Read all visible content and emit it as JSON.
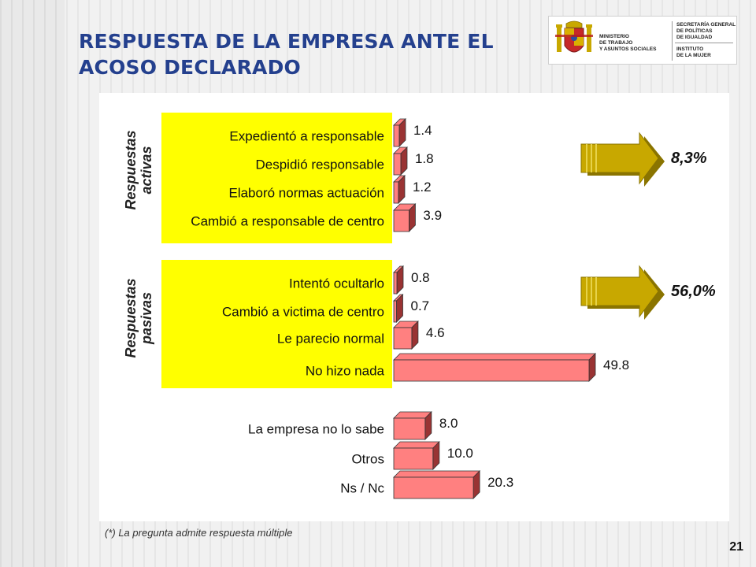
{
  "slide": {
    "title": "RESPUESTA DE LA EMPRESA ANTE EL\nACOSO DECLARADO",
    "footnote": "(*) La pregunta admite respuesta múltiple",
    "page_number": "21"
  },
  "logo": {
    "ministry": "Ministerio\nde Trabajo\ny Asuntos Sociales",
    "secretaria": "Secretaría General\nde Políticas\nde Igualdad",
    "instituto": "Instituto\nde la Mujer"
  },
  "colors": {
    "title": "#24408e",
    "highlight": "#ffff00",
    "bar_front": "#ff8080",
    "bar_side": "#993333",
    "arrow": "#c8a800"
  },
  "chart_data": {
    "type": "bar",
    "orientation": "horizontal",
    "groups": [
      {
        "label": "Respuestas activas",
        "summary": "8,3%",
        "categories": [
          "Expedientó a responsable",
          "Despidió responsable",
          "Elaboró normas actuación",
          "Cambió a responsable de centro"
        ],
        "values": [
          1.4,
          1.8,
          1.2,
          3.9
        ],
        "value_labels": [
          "1.4",
          "1.8",
          "1.2",
          "3.9"
        ]
      },
      {
        "label": "Respuestas pasivas",
        "summary": "56,0%",
        "categories": [
          "Intentó ocultarlo",
          "Cambió a victima de centro",
          "Le parecio normal",
          "No hizo nada"
        ],
        "values": [
          0.8,
          0.7,
          4.6,
          49.8
        ],
        "value_labels": [
          "0.8",
          "0.7",
          "4.6",
          "49.8"
        ]
      },
      {
        "label": "",
        "summary": "",
        "categories": [
          "La empresa no lo sabe",
          "Otros",
          "Ns / Nc"
        ],
        "values": [
          8.0,
          10.0,
          20.3
        ],
        "value_labels": [
          "8.0",
          "10.0",
          "20.3"
        ]
      }
    ],
    "xlim": [
      0,
      50
    ],
    "grid": false,
    "legend": "none"
  }
}
